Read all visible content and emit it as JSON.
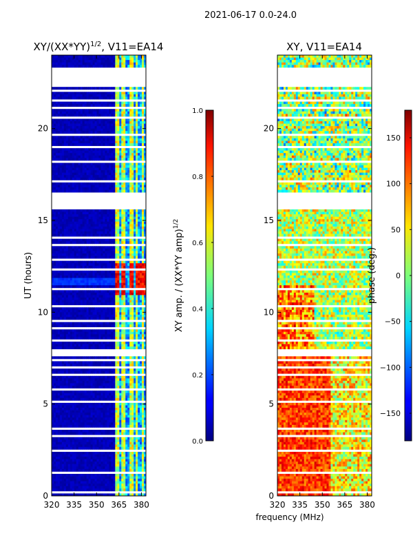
{
  "figure": {
    "suptitle": "2021-06-17 0.0-24.0"
  },
  "chart_data": [
    {
      "type": "heatmap",
      "title_main": "XY/(XX*YY)",
      "title_sup": "1/2",
      "title_tail": ", V11=EA14",
      "xlabel": "",
      "ylabel": "UT (hours)",
      "xlim": [
        320,
        383
      ],
      "ylim": [
        0,
        24
      ],
      "xticks": [
        320,
        335,
        350,
        365,
        380
      ],
      "yticks": [
        0,
        5,
        10,
        15,
        20
      ],
      "colorbar": {
        "label_main": "XY amp. / (XX*YY amp)",
        "label_sup": "1/2",
        "range": [
          0.0,
          1.0
        ],
        "ticks": [
          "0.0",
          "0.2",
          "0.4",
          "0.6",
          "0.8",
          "1.0"
        ],
        "colormap": "jet"
      },
      "band_start_mhz": 362,
      "bright_channels_mhz": [
        364,
        368,
        373,
        377,
        381
      ],
      "strong_region_hours": [
        10.9,
        12.7
      ],
      "flagged_rows_hours": [
        0.2,
        0.4,
        0.8,
        1.3,
        1.6,
        2.5,
        3.3,
        3.7,
        4.4,
        5.1,
        5.8,
        6.6,
        7.0,
        7.4,
        7.7,
        7.85,
        8.5,
        9.1,
        9.5,
        10.3,
        10.8,
        11.3,
        12.3,
        12.9,
        13.7,
        14.1,
        14.8,
        15.2,
        16.1,
        16.3,
        16.5,
        17.1,
        17.6,
        18.2,
        19.0,
        19.7,
        20.6,
        21.1,
        21.5,
        22.1,
        22.3,
        22.6,
        22.9
      ]
    },
    {
      "type": "heatmap",
      "title": "XY, V11=EA14",
      "xlabel": "frequency (MHz)",
      "ylabel": "",
      "xlim": [
        320,
        383
      ],
      "ylim": [
        0,
        24
      ],
      "xticks": [
        320,
        335,
        350,
        365,
        380
      ],
      "yticks": [
        0,
        5,
        10,
        15,
        20
      ],
      "colorbar": {
        "label": "phase (deg.)",
        "range": [
          -180,
          180
        ],
        "ticks": [
          "−150",
          "−100",
          "−50",
          "0",
          "50",
          "100",
          "150"
        ],
        "colormap": "jet"
      },
      "flagged_rows_hours": [
        0.2,
        0.4,
        0.8,
        1.3,
        1.6,
        2.5,
        3.3,
        3.7,
        4.4,
        5.1,
        5.8,
        6.6,
        7.0,
        7.4,
        7.7,
        7.85,
        8.5,
        9.1,
        9.5,
        10.3,
        10.8,
        11.3,
        12.3,
        12.9,
        13.7,
        14.1,
        14.8,
        15.2,
        16.1,
        16.3,
        16.5,
        17.1,
        17.6,
        18.2,
        19.0,
        19.7,
        20.6,
        21.1,
        21.5,
        22.1,
        22.3,
        22.6,
        22.9
      ]
    }
  ]
}
